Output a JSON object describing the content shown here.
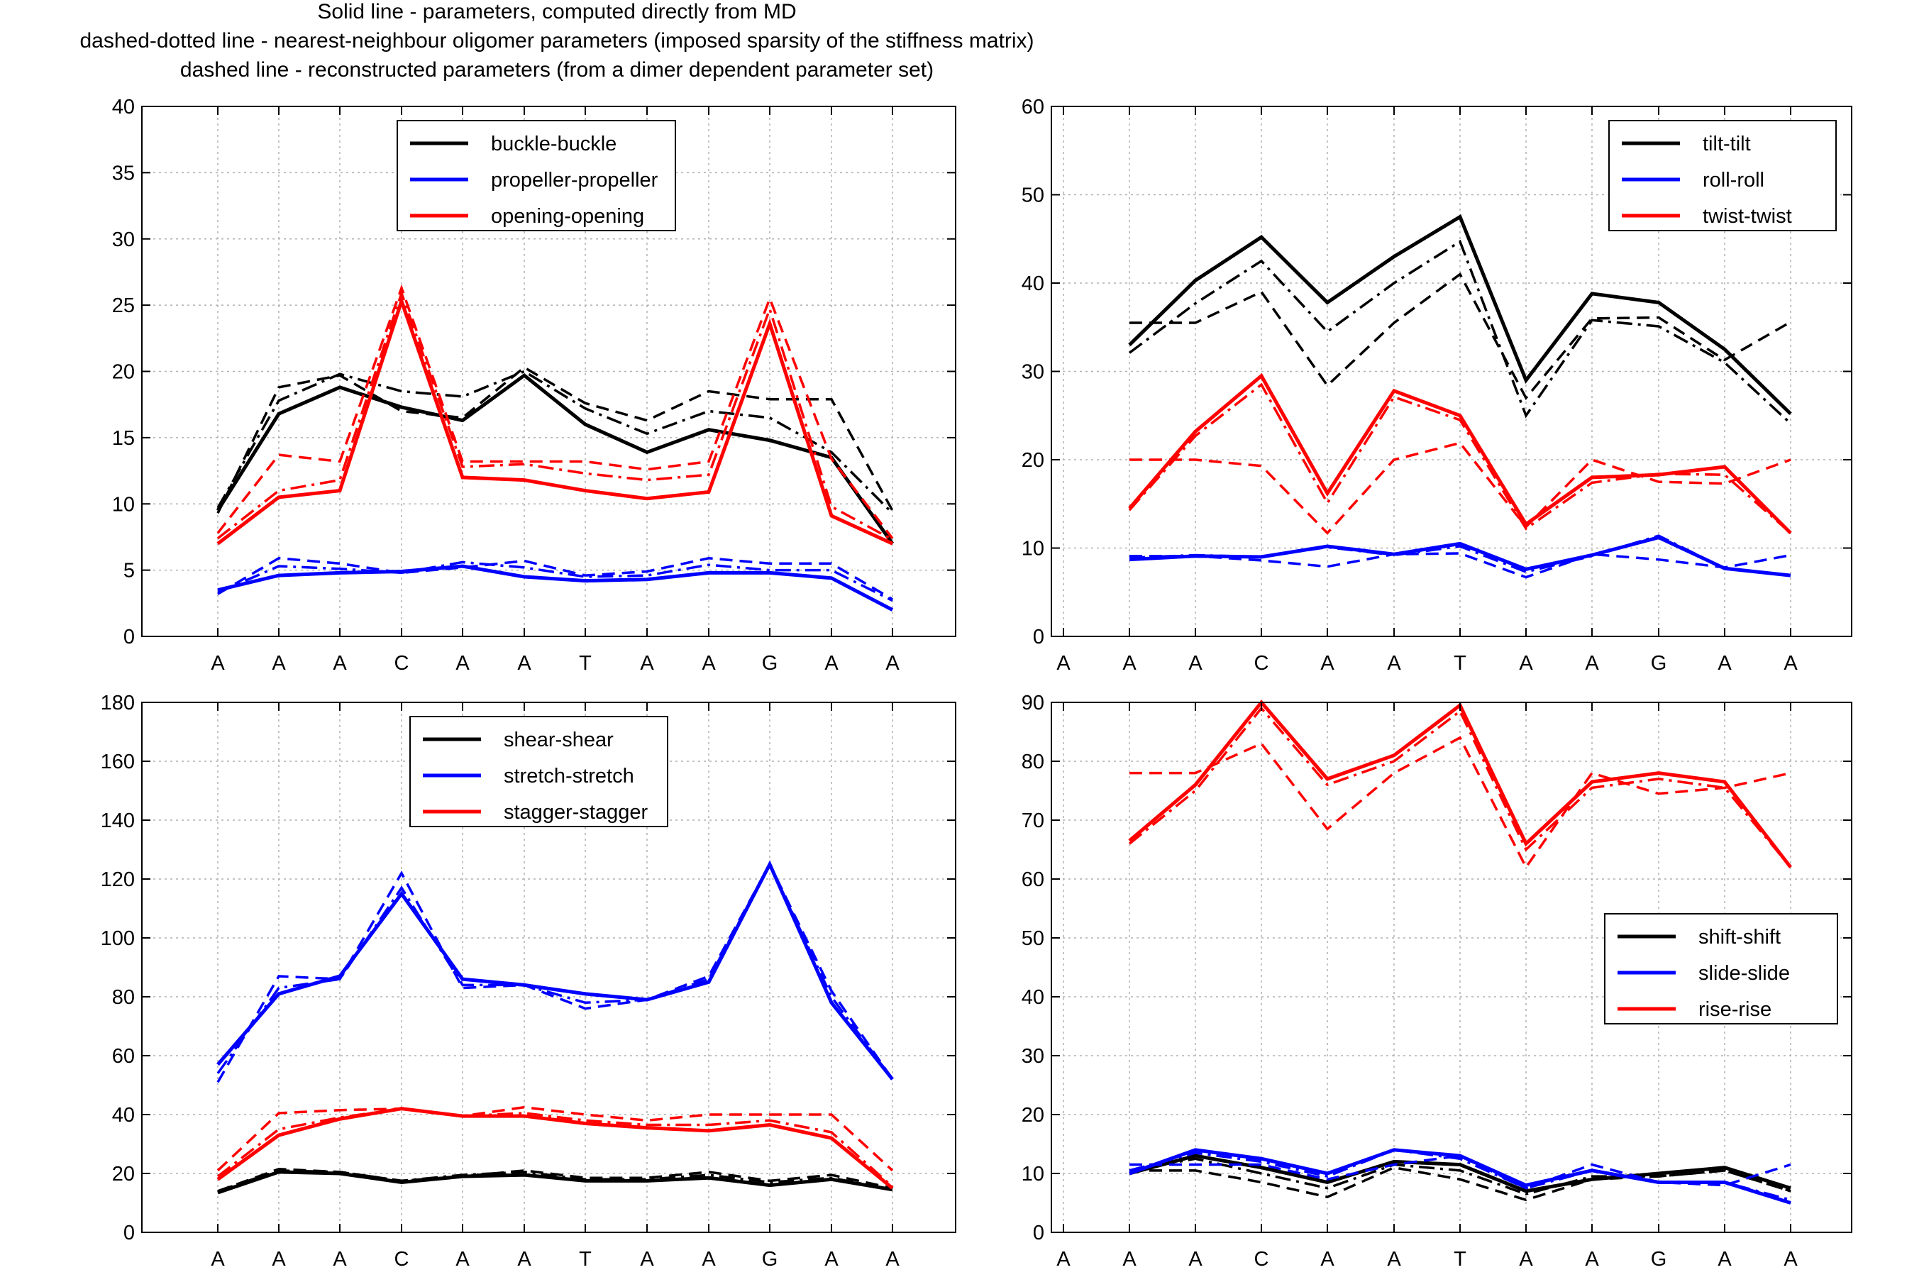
{
  "header": {
    "line1": "Solid line - parameters, computed directly from MD",
    "line2": "dashed-dotted line - nearest-neighbour oligomer parameters (imposed sparsity of the stiffness matrix)",
    "line3": "dashed line - reconstructed parameters (from a dimer dependent parameter set)"
  },
  "colors": {
    "black": "#000000",
    "blue": "#0000ff",
    "red": "#ff0000",
    "grid": "#b0b0b0"
  },
  "chart_data": [
    {
      "type": "line",
      "panel": "top-left",
      "x_labels": [
        "A",
        "A",
        "A",
        "C",
        "A",
        "A",
        "T",
        "A",
        "A",
        "G",
        "A",
        "A"
      ],
      "ylim": [
        0,
        40
      ],
      "yticks": [
        0,
        5,
        10,
        15,
        20,
        25,
        30,
        35,
        40
      ],
      "legend_position": "top-center",
      "grid": true,
      "series": [
        {
          "name": "buckle-buckle",
          "color": "black",
          "solid": [
            9.5,
            16.8,
            18.8,
            17.3,
            16.3,
            19.7,
            16.0,
            13.9,
            15.6,
            14.8,
            13.5,
            7.0
          ],
          "dashdot": [
            9.7,
            17.8,
            19.8,
            18.5,
            18.1,
            20.0,
            17.2,
            15.3,
            17.0,
            16.5,
            13.9,
            9.3
          ],
          "dashed": [
            9.3,
            18.8,
            19.7,
            17.0,
            16.5,
            20.3,
            17.6,
            16.3,
            18.5,
            17.9,
            17.9,
            9.5
          ]
        },
        {
          "name": "propeller-propeller",
          "color": "blue",
          "solid": [
            3.5,
            4.6,
            4.8,
            4.9,
            5.3,
            4.5,
            4.2,
            4.3,
            4.8,
            4.8,
            4.4,
            2.0
          ],
          "dashdot": [
            3.3,
            5.3,
            5.1,
            4.8,
            5.6,
            5.2,
            4.5,
            4.6,
            5.4,
            5.0,
            5.0,
            2.7
          ],
          "dashed": [
            3.2,
            5.9,
            5.5,
            4.8,
            5.2,
            5.7,
            4.6,
            4.9,
            5.9,
            5.5,
            5.5,
            2.8
          ]
        },
        {
          "name": "opening-opening",
          "color": "red",
          "solid": [
            7.0,
            10.5,
            11.0,
            25.3,
            12.0,
            11.8,
            11.0,
            10.4,
            10.9,
            23.6,
            9.1,
            7.0
          ],
          "dashdot": [
            7.4,
            11.0,
            11.8,
            25.9,
            12.8,
            13.0,
            12.3,
            11.8,
            12.2,
            24.7,
            9.8,
            7.3
          ],
          "dashed": [
            7.8,
            13.7,
            13.2,
            26.3,
            13.2,
            13.2,
            13.2,
            12.6,
            13.2,
            25.5,
            13.4,
            7.4
          ]
        }
      ]
    },
    {
      "type": "line",
      "panel": "top-right",
      "x_labels": [
        "A",
        "A",
        "A",
        "C",
        "A",
        "A",
        "T",
        "A",
        "A",
        "G",
        "A",
        "A"
      ],
      "ylim": [
        0,
        60
      ],
      "yticks": [
        0,
        10,
        20,
        30,
        40,
        50,
        60
      ],
      "legend_position": "top-right",
      "grid": true,
      "series": [
        {
          "name": "tilt-tilt",
          "color": "black",
          "solid": [
            33.0,
            40.3,
            45.2,
            37.8,
            43.0,
            47.5,
            29.0,
            38.8,
            37.8,
            32.5,
            25.2
          ],
          "dashdot": [
            32.1,
            37.7,
            42.5,
            34.5,
            40.0,
            44.7,
            25.0,
            35.8,
            35.1,
            31.0,
            24.1
          ],
          "dashed": [
            35.5,
            35.5,
            39.0,
            28.4,
            35.5,
            41.0,
            27.0,
            36.0,
            36.1,
            31.3,
            35.6
          ]
        },
        {
          "name": "roll-roll",
          "color": "blue",
          "solid": [
            8.7,
            9.1,
            9.0,
            10.2,
            9.3,
            10.5,
            7.6,
            9.2,
            11.2,
            7.7,
            6.9
          ],
          "dashdot": [
            8.9,
            9.2,
            9.0,
            10.1,
            9.2,
            10.2,
            7.3,
            9.1,
            11.4,
            7.7,
            6.9
          ],
          "dashed": [
            9.1,
            9.1,
            8.6,
            7.9,
            9.3,
            9.4,
            6.7,
            9.3,
            8.7,
            7.8,
            9.2
          ]
        },
        {
          "name": "twist-twist",
          "color": "red",
          "solid": [
            14.5,
            23.2,
            29.5,
            16.2,
            27.8,
            25.0,
            12.7,
            18.0,
            18.3,
            19.2,
            11.7
          ],
          "dashdot": [
            14.3,
            22.7,
            28.5,
            15.1,
            27.1,
            24.5,
            12.2,
            17.4,
            18.4,
            18.3,
            11.7
          ],
          "dashed": [
            20.0,
            20.0,
            19.3,
            11.7,
            20.0,
            21.9,
            12.4,
            20.0,
            17.5,
            17.3,
            20.0
          ]
        }
      ]
    },
    {
      "type": "line",
      "panel": "bottom-left",
      "x_labels": [
        "A",
        "A",
        "A",
        "C",
        "A",
        "A",
        "T",
        "A",
        "A",
        "G",
        "A",
        "A"
      ],
      "ylim": [
        0,
        180
      ],
      "yticks": [
        0,
        20,
        40,
        60,
        80,
        100,
        120,
        140,
        160,
        180
      ],
      "legend_position": "top-center",
      "grid": true,
      "series": [
        {
          "name": "shear-shear",
          "color": "black",
          "solid": [
            13.5,
            20.5,
            20.0,
            17.0,
            19.0,
            19.5,
            17.5,
            17.5,
            18.5,
            16.0,
            18.0,
            14.5
          ],
          "dashdot": [
            14.0,
            21.0,
            20.5,
            17.5,
            19.5,
            20.5,
            18.0,
            18.0,
            19.5,
            17.0,
            18.5,
            14.5
          ],
          "dashed": [
            14.0,
            21.5,
            20.5,
            17.5,
            19.0,
            21.0,
            18.5,
            18.5,
            20.5,
            17.5,
            19.5,
            15.0
          ]
        },
        {
          "name": "stretch-stretch",
          "color": "blue",
          "solid": [
            57.0,
            81.0,
            87.0,
            115.0,
            86.0,
            84.0,
            81.0,
            79.0,
            85.0,
            125.0,
            78.0,
            52.0
          ],
          "dashdot": [
            54.0,
            83.0,
            86.0,
            117.0,
            84.0,
            84.0,
            78.0,
            79.0,
            86.0,
            125.0,
            80.0,
            52.0
          ],
          "dashed": [
            51.0,
            87.0,
            86.0,
            122.0,
            83.0,
            84.0,
            76.0,
            79.0,
            87.0,
            125.0,
            82.0,
            52.0
          ]
        },
        {
          "name": "stagger-stagger",
          "color": "red",
          "solid": [
            18.0,
            33.0,
            38.5,
            42.0,
            39.5,
            39.5,
            37.0,
            35.5,
            34.5,
            36.5,
            32.0,
            15.0
          ],
          "dashdot": [
            19.0,
            35.0,
            39.0,
            42.0,
            39.5,
            40.5,
            38.0,
            36.5,
            36.5,
            38.0,
            34.0,
            15.5
          ],
          "dashed": [
            21.0,
            40.5,
            41.5,
            42.0,
            39.5,
            42.5,
            40.0,
            38.0,
            40.0,
            40.0,
            40.0,
            21.0
          ]
        }
      ]
    },
    {
      "type": "line",
      "panel": "bottom-right",
      "x_labels": [
        "A",
        "A",
        "A",
        "C",
        "A",
        "A",
        "T",
        "A",
        "A",
        "G",
        "A",
        "A"
      ],
      "ylim": [
        0,
        90
      ],
      "yticks": [
        0,
        10,
        20,
        30,
        40,
        50,
        60,
        70,
        80,
        90
      ],
      "legend_position": "center-right",
      "grid": true,
      "series": [
        {
          "name": "shift-shift",
          "color": "black",
          "solid": [
            10.0,
            13.0,
            11.0,
            8.5,
            12.0,
            11.5,
            7.0,
            9.0,
            10.0,
            11.0,
            7.5
          ],
          "dashdot": [
            10.5,
            12.5,
            10.0,
            7.5,
            11.5,
            10.5,
            6.5,
            9.5,
            9.5,
            10.5,
            7.0
          ],
          "dashed": [
            10.5,
            10.5,
            8.5,
            6.0,
            11.0,
            9.0,
            5.5,
            9.0,
            9.5,
            10.5,
            7.0
          ]
        },
        {
          "name": "slide-slide",
          "color": "blue",
          "solid": [
            10.0,
            14.0,
            12.5,
            10.0,
            14.0,
            13.0,
            8.0,
            10.5,
            8.5,
            8.5,
            5.0
          ],
          "dashdot": [
            10.5,
            13.5,
            12.0,
            9.5,
            14.0,
            12.5,
            7.5,
            10.5,
            8.5,
            8.5,
            5.5
          ],
          "dashed": [
            11.5,
            11.5,
            11.5,
            9.0,
            11.5,
            13.0,
            7.5,
            11.5,
            8.5,
            8.0,
            11.5
          ]
        },
        {
          "name": "rise-rise",
          "color": "red",
          "solid": [
            66.5,
            76.0,
            90.0,
            77.0,
            81.0,
            89.5,
            66.0,
            76.5,
            78.0,
            76.5,
            62.0
          ],
          "dashdot": [
            66.0,
            75.0,
            89.0,
            76.0,
            80.0,
            88.5,
            65.0,
            75.5,
            77.0,
            75.5,
            62.0
          ],
          "dashed": [
            78.0,
            78.0,
            83.0,
            68.5,
            78.0,
            84.0,
            62.0,
            78.0,
            74.5,
            75.5,
            78.0
          ]
        }
      ]
    }
  ]
}
